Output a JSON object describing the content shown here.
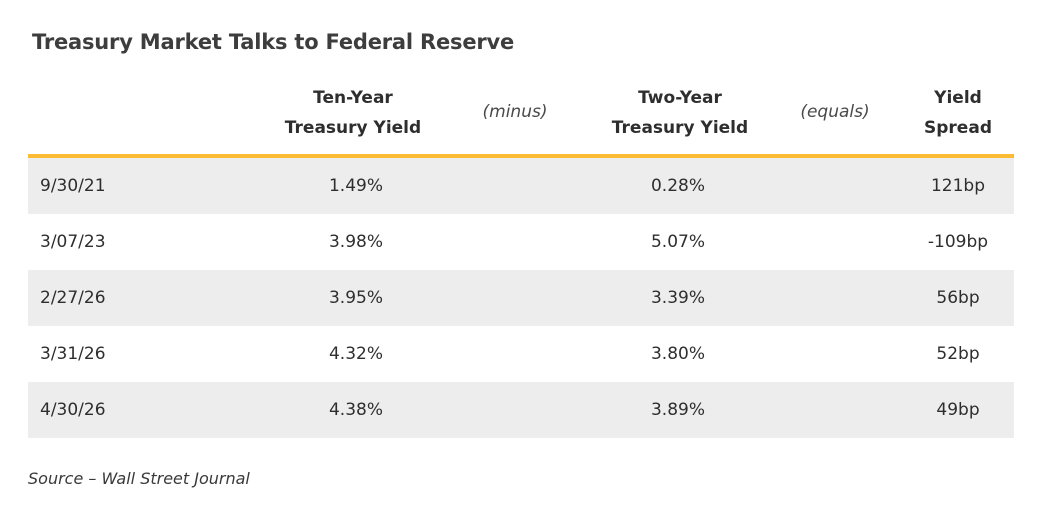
{
  "chart_data": {
    "type": "table",
    "title": "Treasury Market Talks to Federal Reserve",
    "columns": {
      "ten_year": [
        "Ten-Year",
        "Treasury Yield"
      ],
      "minus": "(minus)",
      "two_year": [
        "Two-Year",
        "Treasury Yield"
      ],
      "equals": "(equals)",
      "spread": [
        "Yield",
        "Spread"
      ]
    },
    "rows": [
      {
        "date": "9/30/21",
        "ten_year": "1.49%",
        "two_year": "0.28%",
        "spread": "121bp"
      },
      {
        "date": "3/07/23",
        "ten_year": "3.98%",
        "two_year": "5.07%",
        "spread": "-109bp"
      },
      {
        "date": "2/27/26",
        "ten_year": "3.95%",
        "two_year": "3.39%",
        "spread": "56bp"
      },
      {
        "date": "3/31/26",
        "ten_year": "4.32%",
        "two_year": "3.80%",
        "spread": "52bp"
      },
      {
        "date": "4/30/26",
        "ten_year": "4.38%",
        "two_year": "3.89%",
        "spread": "49bp"
      }
    ],
    "source": "Source – Wall Street Journal"
  },
  "colors": {
    "accent_rule": "#fbbb33",
    "row_shade": "#ededed"
  }
}
